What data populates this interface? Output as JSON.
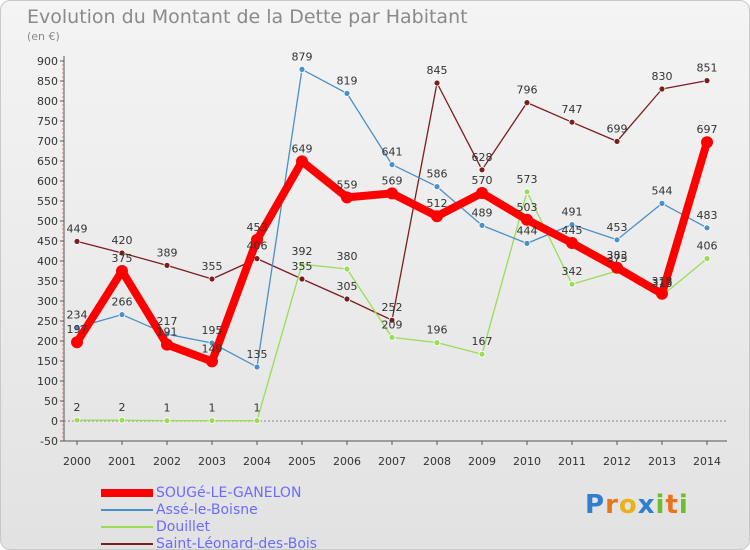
{
  "header": {
    "title": "Evolution du Montant de la Dette par Habitant",
    "subtitle": "(en €)"
  },
  "brand": {
    "letters": [
      "P",
      "r",
      "o",
      "x",
      "i",
      "t",
      "i"
    ],
    "colors": [
      "#2f7fd0",
      "#e8741c",
      "#e8b21c",
      "#2f7fd0",
      "#6cbf2a",
      "#e8741c",
      "#6cbf2a"
    ]
  },
  "chart_data": {
    "type": "line",
    "title": "Evolution du Montant de la Dette par Habitant",
    "ylabel": "(en €)",
    "xlabel": "",
    "x": [
      "2000",
      "2001",
      "2002",
      "2003",
      "2004",
      "2005",
      "2006",
      "2007",
      "2008",
      "2009",
      "2010",
      "2011",
      "2012",
      "2013",
      "2014"
    ],
    "ylim": [
      -50,
      900
    ],
    "yticks": [
      -50,
      0,
      50,
      100,
      150,
      200,
      250,
      300,
      350,
      400,
      450,
      500,
      550,
      600,
      650,
      700,
      750,
      800,
      850,
      900
    ],
    "grid": false,
    "legend_position": "bottom-left",
    "series": [
      {
        "name": "SOUGé-LE-GANELON",
        "color": "#ff0000",
        "values": [
          197,
          375,
          191,
          149,
          453,
          649,
          559,
          569,
          512,
          570,
          503,
          445,
          383,
          318,
          697
        ],
        "labels": [
          "197",
          "375",
          "191",
          "149",
          "453",
          "649",
          "559",
          "569",
          "512",
          "570",
          "503",
          "445",
          "383",
          "318",
          "697"
        ]
      },
      {
        "name": "Assé-le-Boisne",
        "color": "#4a90c8",
        "values": [
          234,
          266,
          217,
          195,
          135,
          879,
          819,
          641,
          586,
          489,
          444,
          491,
          453,
          544,
          483
        ],
        "labels": [
          "234",
          "266",
          "217",
          "195",
          "135",
          "879",
          "819",
          "641",
          "586",
          "489",
          "444",
          "491",
          "453",
          "544",
          "483"
        ]
      },
      {
        "name": "Douillet",
        "color": "#99dd55",
        "values": [
          2,
          2,
          1,
          1,
          1,
          392,
          380,
          209,
          196,
          167,
          573,
          342,
          375,
          313,
          406
        ],
        "labels": [
          "2",
          "2",
          "1",
          "1",
          "1",
          "392",
          "380",
          "209",
          "196",
          "167",
          "573",
          "342",
          "375",
          "313",
          "406"
        ]
      },
      {
        "name": "Saint-Léonard-des-Bois",
        "color": "#7a1e1e",
        "values": [
          449,
          420,
          389,
          355,
          406,
          355,
          305,
          252,
          845,
          628,
          796,
          747,
          699,
          830,
          851
        ],
        "labels": [
          "449",
          "420",
          "389",
          "355",
          "406",
          "355",
          "305",
          "252",
          "845",
          "628",
          "796",
          "747",
          "699",
          "830",
          "851"
        ]
      }
    ]
  }
}
